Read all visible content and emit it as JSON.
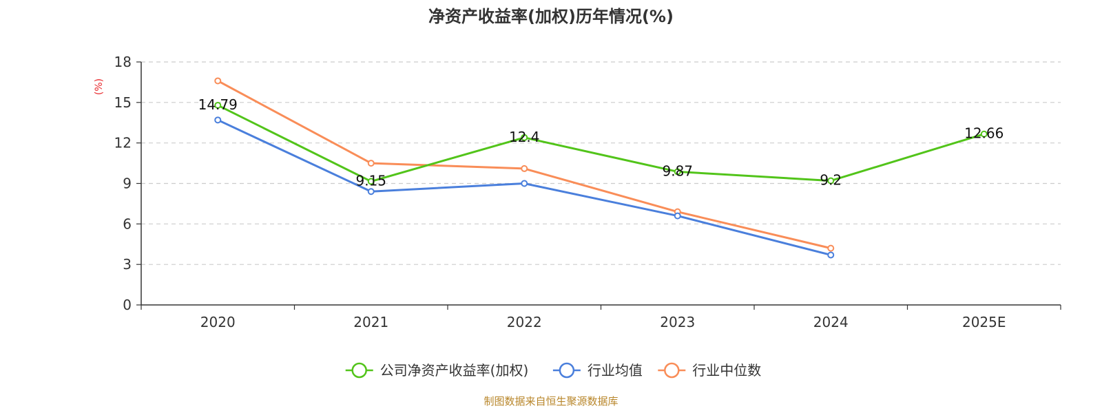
{
  "chart_data": {
    "type": "line",
    "title": "净资产收益率(加权)历年情况(%)",
    "ylabel": "(%)",
    "xlabel": "",
    "categories": [
      "2020",
      "2021",
      "2022",
      "2023",
      "2024",
      "2025E"
    ],
    "ylim": [
      0,
      18
    ],
    "yticks": [
      0,
      3,
      6,
      9,
      12,
      15,
      18
    ],
    "grid": true,
    "legend_position": "bottom-center",
    "series": [
      {
        "name": "公司净资产收益率(加权)",
        "color": "#52c41a",
        "values": [
          14.79,
          9.15,
          12.4,
          9.87,
          9.2,
          12.66
        ],
        "labels": [
          "14.79",
          "9.15",
          "12.4",
          "9.87",
          "9.2",
          "12.66"
        ]
      },
      {
        "name": "行业均值",
        "color": "#4a7fdc",
        "values": [
          13.7,
          8.4,
          9.0,
          6.6,
          3.7,
          null
        ]
      },
      {
        "name": "行业中位数",
        "color": "#f98d58",
        "values": [
          16.6,
          10.5,
          10.1,
          6.9,
          4.2,
          null
        ]
      }
    ]
  },
  "source_text": "制图数据来自恒生聚源数据库"
}
